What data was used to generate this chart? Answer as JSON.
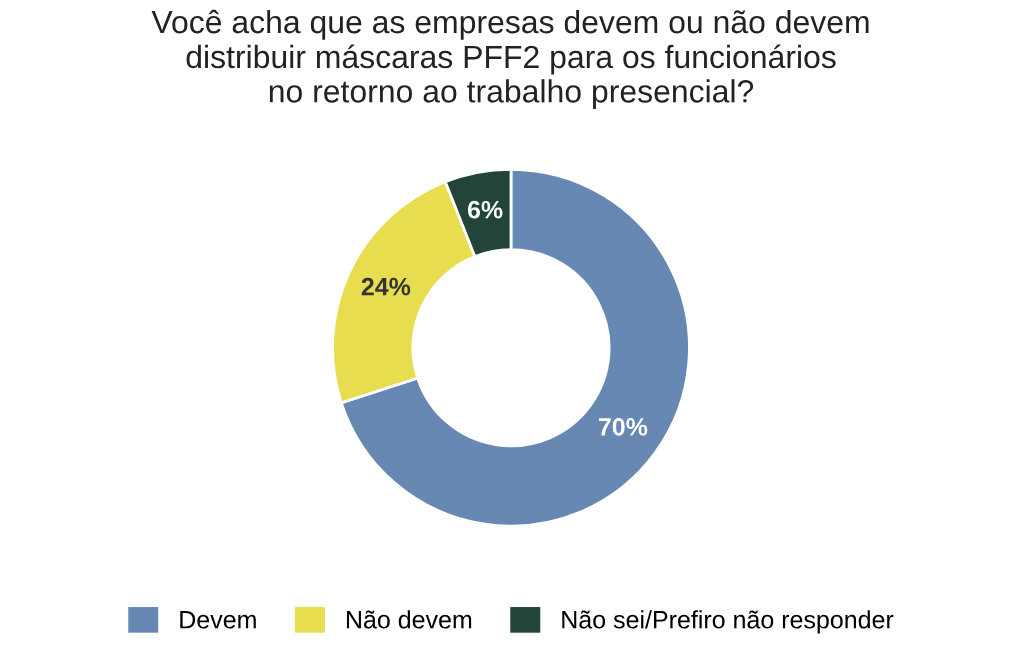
{
  "chart_data": {
    "type": "donut",
    "title": "Você acha que as empresas devem ou não devem\ndistribuir máscaras PFF2 para os funcionários\nno retorno ao trabalho presencial?",
    "categories": [
      "Devem",
      "Não devem",
      "Não sei/Prefiro não responder"
    ],
    "values": [
      70,
      24,
      6
    ],
    "colors": [
      "#6688b3",
      "#e8dd4f",
      "#23443a"
    ],
    "value_labels": [
      "70%",
      "24%",
      "6%"
    ],
    "legend": "bottom"
  }
}
